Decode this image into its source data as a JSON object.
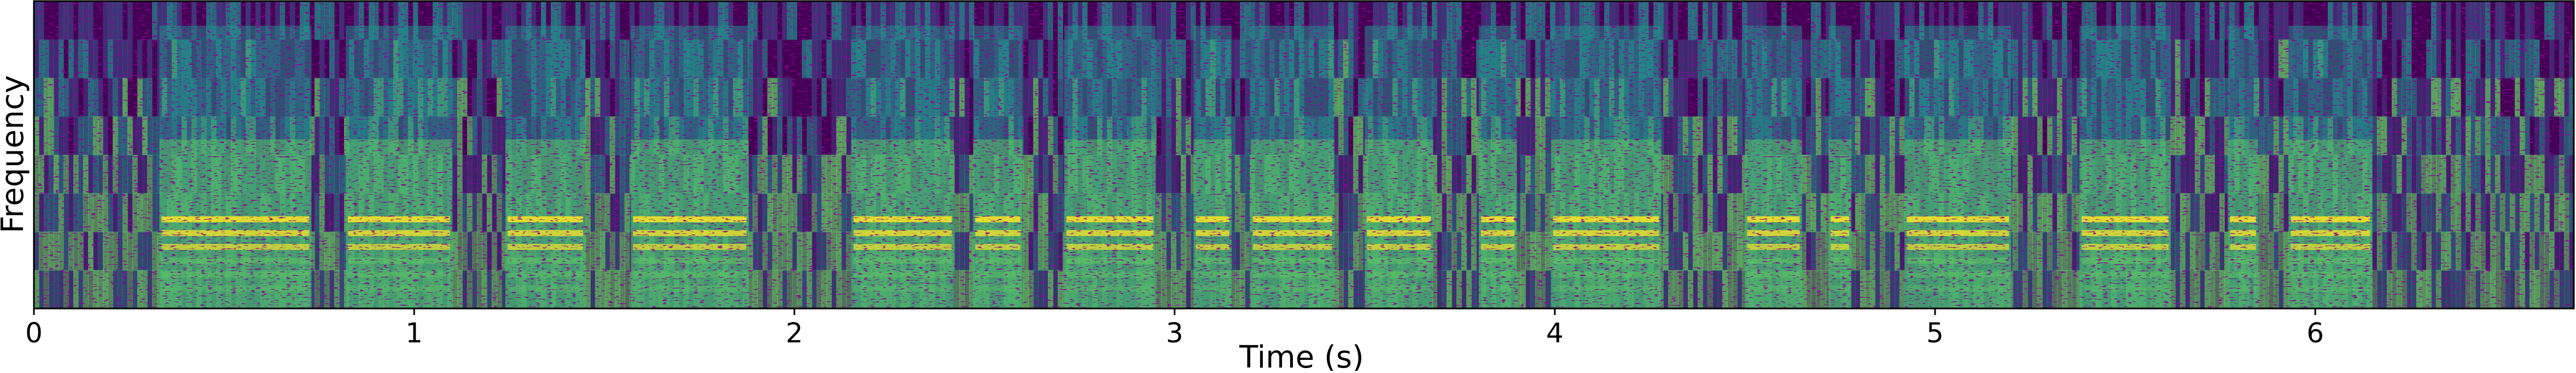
{
  "chart_data": {
    "type": "heatmap",
    "title": "",
    "xlabel": "Time (s)",
    "ylabel": "Frequency",
    "xlim": [
      0,
      6.68
    ],
    "x_ticks": [
      {
        "value": 0,
        "label": "0"
      },
      {
        "value": 1,
        "label": "1"
      },
      {
        "value": 2,
        "label": "2"
      },
      {
        "value": 3,
        "label": "3"
      },
      {
        "value": 4,
        "label": "4"
      },
      {
        "value": 5,
        "label": "5"
      },
      {
        "value": 6,
        "label": "6"
      }
    ],
    "y_ticks": [],
    "grid": false,
    "legend": "none",
    "colormap": "viridis",
    "colors": {
      "low": "#440154",
      "mid_low": "#3b528b",
      "mid": "#21918c",
      "mid_high": "#5ec962",
      "high": "#fde725"
    },
    "speech_segments_s": [
      [
        0.33,
        0.73
      ],
      [
        0.82,
        1.1
      ],
      [
        1.24,
        1.45
      ],
      [
        1.57,
        1.88
      ],
      [
        2.15,
        2.42
      ],
      [
        2.47,
        2.6
      ],
      [
        2.71,
        2.95
      ],
      [
        3.05,
        3.15
      ],
      [
        3.2,
        3.42
      ],
      [
        3.5,
        3.68
      ],
      [
        3.8,
        3.9
      ],
      [
        3.99,
        4.28
      ],
      [
        4.5,
        4.65
      ],
      [
        4.72,
        4.78
      ],
      [
        4.92,
        5.2
      ],
      [
        5.38,
        5.62
      ],
      [
        5.77,
        5.85
      ],
      [
        5.93,
        6.15
      ]
    ]
  }
}
